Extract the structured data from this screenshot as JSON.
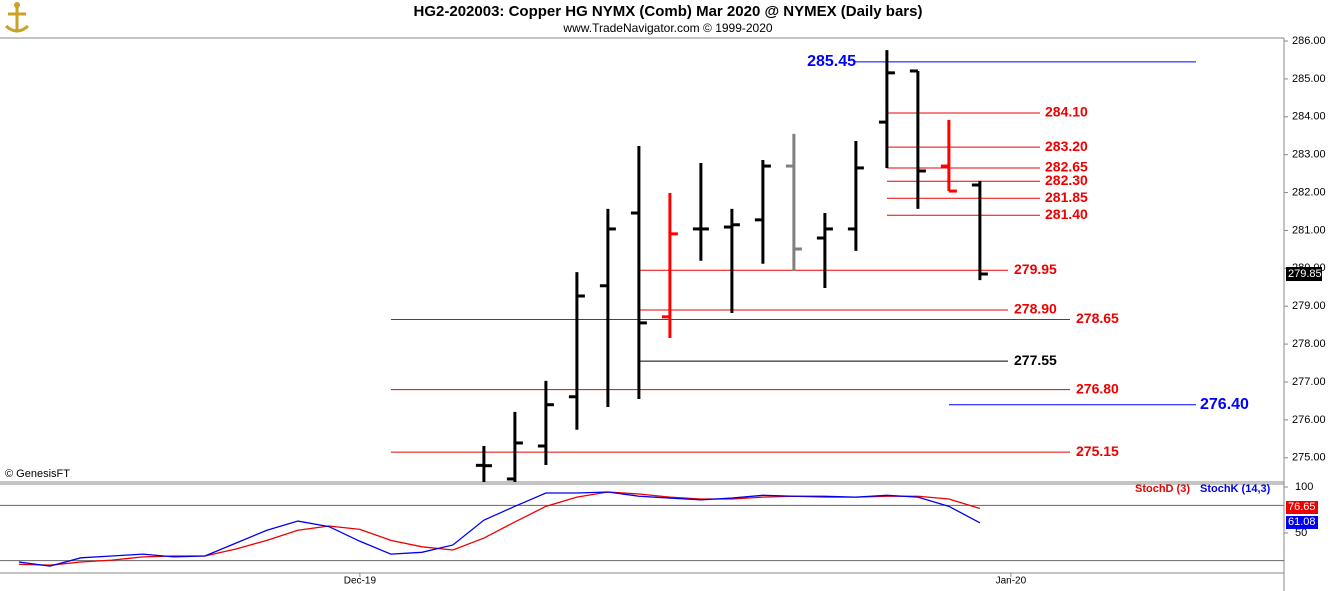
{
  "chart_data": {
    "type": "ohlc",
    "title": "HG2-202003:  Copper HG NYMX (Comb) Mar 2020 @ NYMEX  (Daily bars)",
    "subtitle": "www.TradeNavigator.com © 1999-2020",
    "watermark": "© GenesisFT",
    "xlim": [
      -0.61,
      40.81
    ],
    "xticks": [
      {
        "value": 11,
        "label": "Dec-19"
      },
      {
        "value": 32,
        "label": "Jan-20"
      }
    ],
    "ylim": [
      274.36,
      286.08
    ],
    "yticks": [
      {
        "value": 275,
        "label": "275.00"
      },
      {
        "value": 276,
        "label": "276.00"
      },
      {
        "value": 277,
        "label": "277.00"
      },
      {
        "value": 278,
        "label": "278.00"
      },
      {
        "value": 279,
        "label": "279.00"
      },
      {
        "value": 280,
        "label": "280.00"
      },
      {
        "value": 281,
        "label": "281.00"
      },
      {
        "value": 282,
        "label": "282.00"
      },
      {
        "value": 283,
        "label": "283.00"
      },
      {
        "value": 284,
        "label": "284.00"
      },
      {
        "value": 285,
        "label": "285.00"
      },
      {
        "value": 286,
        "label": "286.00"
      }
    ],
    "open": [
      null,
      null,
      null,
      null,
      null,
      null,
      null,
      null,
      null,
      null,
      null,
      null,
      null,
      null,
      null,
      274.8,
      274.44,
      275.31,
      276.61,
      279.54,
      281.46,
      278.72,
      281.04,
      281.09,
      281.28,
      282.7,
      280.8,
      281.04,
      283.86,
      285.21,
      282.7,
      282.2
    ],
    "high": [
      null,
      null,
      null,
      null,
      null,
      null,
      null,
      null,
      null,
      null,
      null,
      null,
      null,
      null,
      null,
      275.31,
      276.21,
      277.03,
      279.9,
      281.57,
      283.23,
      281.99,
      282.78,
      281.57,
      282.86,
      283.55,
      281.46,
      283.36,
      285.76,
      285.21,
      283.92,
      282.31
    ],
    "low": [
      null,
      null,
      null,
      null,
      null,
      null,
      null,
      null,
      null,
      null,
      null,
      null,
      null,
      null,
      null,
      274.3,
      274.3,
      274.81,
      275.74,
      276.34,
      276.55,
      278.16,
      280.2,
      278.82,
      280.12,
      279.93,
      279.48,
      280.46,
      282.65,
      281.57,
      282.04,
      279.69
    ],
    "close": [
      null,
      null,
      null,
      null,
      null,
      null,
      null,
      null,
      null,
      null,
      null,
      null,
      null,
      null,
      null,
      274.79,
      275.39,
      276.4,
      279.27,
      281.04,
      278.56,
      280.91,
      281.04,
      281.15,
      282.7,
      280.51,
      281.04,
      282.65,
      285.16,
      282.57,
      282.04,
      279.85
    ],
    "bar_colors": [
      null,
      null,
      null,
      null,
      null,
      null,
      null,
      null,
      null,
      null,
      null,
      null,
      null,
      null,
      null,
      "#000000",
      "#000000",
      "#000000",
      "#000000",
      "#000000",
      "#000000",
      "#ff0000",
      "#000000",
      "#000000",
      "#000000",
      "#808080",
      "#000000",
      "#000000",
      "#000000",
      "#000000",
      "#ff0000",
      "#000000"
    ],
    "levels": [
      {
        "value": 285.45,
        "color": "#0000ff"
      },
      {
        "value": 284.1,
        "label": "284.10",
        "color": "#ee0000"
      },
      {
        "value": 283.2,
        "label": "283.20",
        "color": "#ee0000"
      },
      {
        "value": 282.65,
        "color": "#ee0000"
      },
      {
        "value": 282.3,
        "label": "282.30",
        "color": "#ee0000"
      },
      {
        "value": 281.85,
        "color": "#ee0000"
      },
      {
        "value": 281.4,
        "label": "281.40",
        "color": "#ee0000"
      },
      {
        "value": 279.95,
        "color": "#ee0000"
      },
      {
        "value": 278.9,
        "label": "278.90",
        "color": "#ee0000"
      },
      {
        "value": 278.65,
        "color": "#ee0000"
      },
      {
        "value": 277.55,
        "color": "#000000"
      },
      {
        "value": 276.8,
        "label": "276.80",
        "color": "#ee0000"
      },
      {
        "value": 276.4,
        "label": "276.40",
        "color": "#0000ff"
      },
      {
        "value": 275.15,
        "color": "#ee0000"
      }
    ],
    "stoch": {
      "ylim": [
        6.5,
        103.3
      ],
      "yticks": [
        100,
        50
      ],
      "hlines": [
        80,
        20
      ],
      "series": [
        {
          "name": "StochD (3)",
          "color": "#ee0000",
          "values": [
            16,
            15,
            18.5,
            20.5,
            24,
            25,
            25,
            32.6,
            42,
            53,
            57.6,
            54,
            42,
            35,
            31.5,
            44.5,
            62,
            79,
            89,
            94.6,
            92.4,
            89,
            87,
            87,
            89,
            90,
            89,
            89,
            90,
            90,
            87,
            76.65
          ]
        },
        {
          "name": "StochK (14,3)",
          "color": "#0000ee",
          "values": [
            18.5,
            14,
            23,
            25,
            27,
            24,
            25,
            39,
            53,
            63,
            57,
            41,
            27,
            29,
            37,
            64,
            79,
            93.5,
            93.5,
            94.6,
            90,
            88,
            86,
            88,
            91,
            90,
            90,
            89,
            91,
            89,
            79,
            61.08
          ]
        }
      ]
    }
  }
}
